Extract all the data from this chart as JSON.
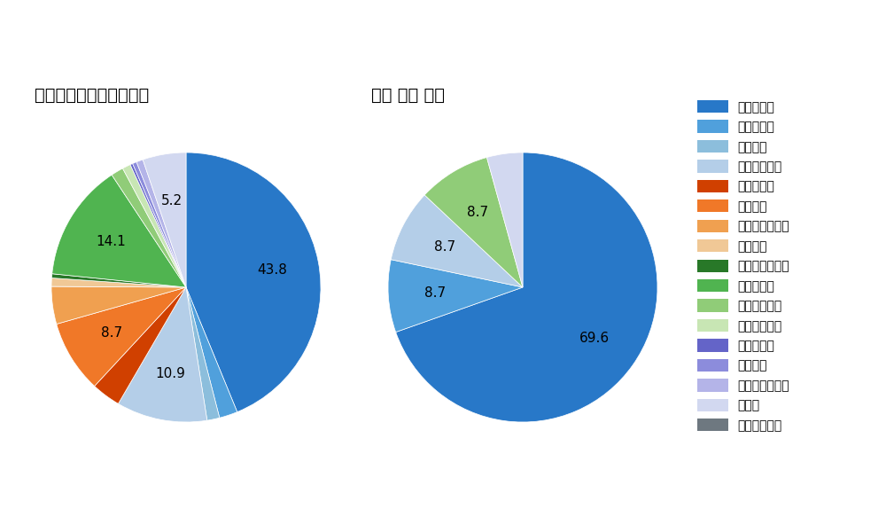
{
  "left_title": "セ・リーグ全プレイヤー",
  "right_title": "山崎 伊織 選手",
  "pitch_types": [
    "ストレート",
    "ツーシーム",
    "シュート",
    "カットボール",
    "スプリット",
    "フォーク",
    "チェンジアップ",
    "シンカー",
    "高速スライダー",
    "スライダー",
    "縦スライダー",
    "パワーカーブ",
    "スクリュー",
    "ナックル",
    "ナックルカーブ",
    "カーブ",
    "スローカーブ"
  ],
  "colors": [
    "#2878C8",
    "#50A0DC",
    "#8CBEDC",
    "#B4CEE8",
    "#D04000",
    "#F07828",
    "#F0A050",
    "#F0C896",
    "#287828",
    "#50B450",
    "#90CC78",
    "#C8E6B4",
    "#6464C8",
    "#8C8CDC",
    "#B4B4E8",
    "#D2D8F0",
    "#6E7880"
  ],
  "left_slices": [
    {
      "pitch": "ストレート",
      "value": 43.8
    },
    {
      "pitch": "ツーシーム",
      "value": 2.2
    },
    {
      "pitch": "シュート",
      "value": 1.5
    },
    {
      "pitch": "カットボール",
      "value": 10.9
    },
    {
      "pitch": "スプリット",
      "value": 3.5
    },
    {
      "pitch": "フォーク",
      "value": 8.7
    },
    {
      "pitch": "チェンジアップ",
      "value": 4.5
    },
    {
      "pitch": "シンカー",
      "value": 1.0
    },
    {
      "pitch": "高速スライダー",
      "value": 0.5
    },
    {
      "pitch": "スライダー",
      "value": 14.1
    },
    {
      "pitch": "縦スライダー",
      "value": 1.5
    },
    {
      "pitch": "パワーカーブ",
      "value": 1.0
    },
    {
      "pitch": "スクリュー",
      "value": 0.3
    },
    {
      "pitch": "ナックル",
      "value": 0.5
    },
    {
      "pitch": "ナックルカーブ",
      "value": 0.8
    },
    {
      "pitch": "カーブ",
      "value": 5.2
    },
    {
      "pitch": "スローカーブ",
      "value": 0.0
    }
  ],
  "right_slices": [
    {
      "pitch": "ストレート",
      "value": 69.6
    },
    {
      "pitch": "ツーシーム",
      "value": 8.7
    },
    {
      "pitch": "シュート",
      "value": 0.0
    },
    {
      "pitch": "カットボール",
      "value": 8.7
    },
    {
      "pitch": "スプリット",
      "value": 0.0
    },
    {
      "pitch": "フォーク",
      "value": 0.0
    },
    {
      "pitch": "チェンジアップ",
      "value": 0.0
    },
    {
      "pitch": "シンカー",
      "value": 0.0
    },
    {
      "pitch": "高速スライダー",
      "value": 0.0
    },
    {
      "pitch": "スライダー",
      "value": 0.0
    },
    {
      "pitch": "縦スライダー",
      "value": 8.7
    },
    {
      "pitch": "パワーカーブ",
      "value": 0.0
    },
    {
      "pitch": "スクリュー",
      "value": 0.0
    },
    {
      "pitch": "ナックル",
      "value": 0.0
    },
    {
      "pitch": "ナックルカーブ",
      "value": 0.0
    },
    {
      "pitch": "カーブ",
      "value": 4.3
    },
    {
      "pitch": "スローカーブ",
      "value": 0.0
    }
  ],
  "label_threshold": 5.0,
  "font_size_label": 11,
  "font_size_title": 14,
  "font_size_legend": 10,
  "background_color": "#ffffff"
}
